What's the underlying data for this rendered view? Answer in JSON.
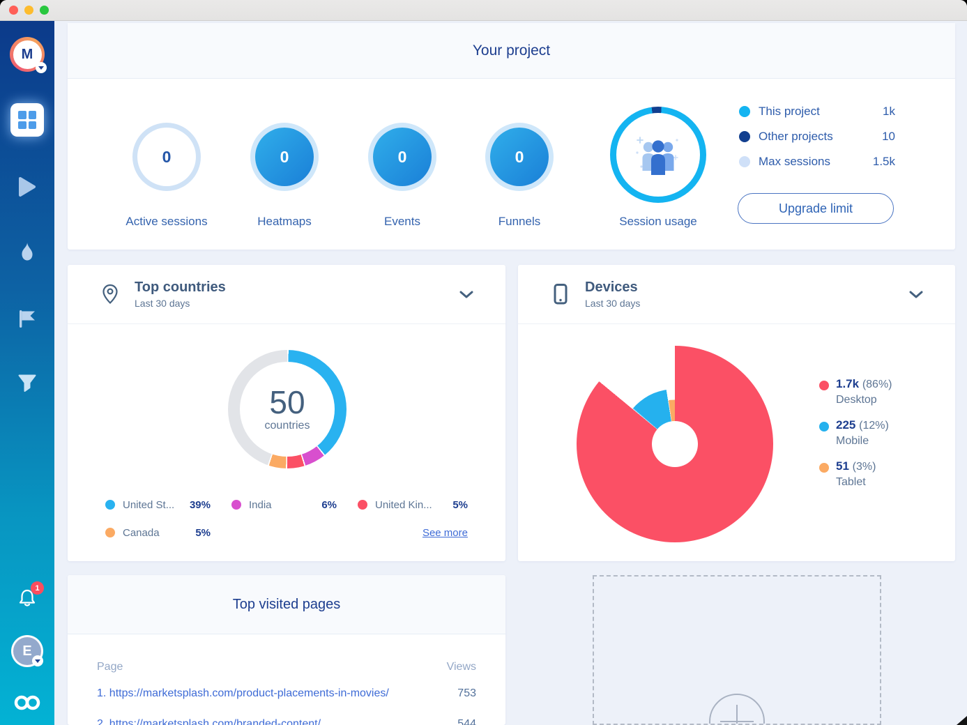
{
  "sidebar": {
    "project_avatar": {
      "initial": "M"
    },
    "notification_badge": "1",
    "user_avatar": {
      "initial": "E"
    }
  },
  "overview": {
    "title": "Your project",
    "stats": [
      {
        "label": "Active sessions",
        "value": "0"
      },
      {
        "label": "Heatmaps",
        "value": "0"
      },
      {
        "label": "Events",
        "value": "0"
      },
      {
        "label": "Funnels",
        "value": "0"
      }
    ],
    "session_usage": {
      "label": "Session usage",
      "legend": [
        {
          "label": "This project",
          "value": "1k",
          "color": "#14b4f1"
        },
        {
          "label": "Other projects",
          "value": "10",
          "color": "#123f8f"
        },
        {
          "label": "Max sessions",
          "value": "1.5k",
          "color": "#cfe0f8"
        }
      ],
      "button_label": "Upgrade limit"
    }
  },
  "top_countries": {
    "title": "Top countries",
    "subtitle": "Last 30 days",
    "center_value": "50",
    "center_label": "countries",
    "legend": [
      {
        "name": "United St...",
        "pct": "39%",
        "color": "#29b2f0"
      },
      {
        "name": "India",
        "pct": "6%",
        "color": "#d84fce"
      },
      {
        "name": "United Kin...",
        "pct": "5%",
        "color": "#fb5065"
      },
      {
        "name": "Canada",
        "pct": "5%",
        "color": "#fbaa63"
      }
    ],
    "see_more": "See more"
  },
  "devices": {
    "title": "Devices",
    "subtitle": "Last 30 days",
    "legend": [
      {
        "value": "1.7k",
        "pct": "(86%)",
        "label": "Desktop",
        "color": "#fb5065"
      },
      {
        "value": "225",
        "pct": "(12%)",
        "label": "Mobile",
        "color": "#25b1ee"
      },
      {
        "value": "51",
        "pct": "(3%)",
        "label": "Tablet",
        "color": "#fbaa63"
      }
    ]
  },
  "top_pages": {
    "title": "Top visited pages",
    "columns": {
      "page": "Page",
      "views": "Views"
    },
    "rows": [
      {
        "page": "1. https://marketsplash.com/product-placements-in-movies/",
        "views": "753"
      },
      {
        "page": "2. https://marketsplash.com/branded-content/",
        "views": "544"
      }
    ]
  },
  "chart_data": [
    {
      "id": "session-usage-ring",
      "type": "pie",
      "title": "Session usage",
      "legend": [
        {
          "name": "This project",
          "value": "1k"
        },
        {
          "name": "Other projects",
          "value": "10"
        },
        {
          "name": "Max sessions",
          "value": "1.5k"
        }
      ],
      "segments": [
        {
          "color": "#14b4f1",
          "pct": 96.7
        },
        {
          "color": "#123f8f",
          "pct": 3.3
        }
      ],
      "rotate": 4
    },
    {
      "id": "top-countries-donut",
      "type": "pie",
      "title": "Top countries",
      "center_value": "50",
      "center_label": "countries",
      "slices": [
        {
          "name": "United States",
          "pct": 39,
          "color": "#29b2f0"
        },
        {
          "name": "India",
          "pct": 6,
          "color": "#d84fce"
        },
        {
          "name": "United Kingdom",
          "pct": 5,
          "color": "#fb5065"
        },
        {
          "name": "Canada",
          "pct": 5,
          "color": "#fbaa63"
        },
        {
          "name": "Other",
          "pct": 45,
          "color": "#e2e4e8"
        }
      ]
    },
    {
      "id": "devices-pie",
      "type": "pie",
      "title": "Devices",
      "hole_radius": 0.234,
      "slices": [
        {
          "name": "Desktop",
          "value": 1700,
          "display": "1.7k",
          "pct": 86,
          "color": "#fb5065",
          "radius": 1
        },
        {
          "name": "Mobile",
          "value": 225,
          "display": "225",
          "pct": 11.5,
          "color": "#25b1ee",
          "radius": 0.56
        },
        {
          "name": "Tablet",
          "value": 51,
          "display": "51",
          "pct": 2.5,
          "color": "#fbaa63",
          "radius": 0.45
        }
      ]
    }
  ]
}
